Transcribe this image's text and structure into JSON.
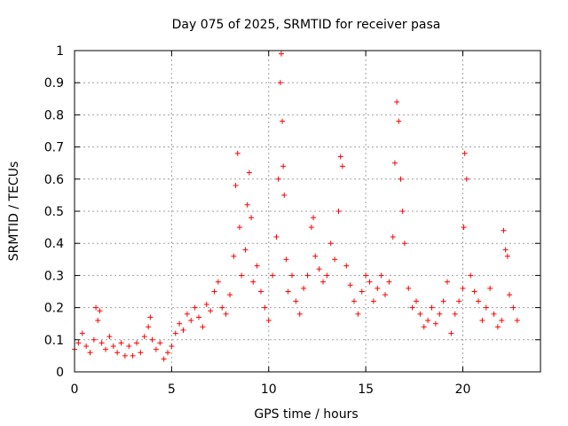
{
  "chart_data": {
    "type": "scatter",
    "title": "Day 075 of 2025, SRMTID for receiver pasa",
    "xlabel": "GPS time / hours",
    "ylabel": "SRMTID / TECUs",
    "xlim": [
      0,
      24
    ],
    "ylim": [
      0,
      1
    ],
    "xticks": [
      0,
      5,
      10,
      15,
      20
    ],
    "xtick_labels": [
      "0",
      "5",
      "10",
      "15",
      "20"
    ],
    "yticks": [
      0,
      0.1,
      0.2,
      0.3,
      0.4,
      0.5,
      0.6,
      0.7,
      0.8,
      0.9,
      1
    ],
    "ytick_labels": [
      "0",
      "0.1",
      "0.2",
      "0.3",
      "0.4",
      "0.5",
      "0.6",
      "0.7",
      "0.8",
      "0.9",
      "1"
    ],
    "grid": true,
    "marker": "+",
    "color": "#ff0000",
    "series": [
      {
        "name": "SRMTID",
        "x": [
          0.0,
          0.2,
          0.4,
          0.6,
          0.8,
          1.0,
          1.1,
          1.2,
          1.3,
          1.4,
          1.6,
          1.8,
          2.0,
          2.2,
          2.4,
          2.6,
          2.8,
          3.0,
          3.2,
          3.4,
          3.6,
          3.8,
          3.9,
          4.0,
          4.2,
          4.4,
          4.6,
          4.8,
          5.0,
          5.2,
          5.4,
          5.6,
          5.8,
          6.0,
          6.2,
          6.4,
          6.6,
          6.8,
          7.0,
          7.2,
          7.4,
          7.6,
          7.8,
          8.0,
          8.2,
          8.3,
          8.4,
          8.5,
          8.6,
          8.8,
          8.9,
          9.0,
          9.1,
          9.2,
          9.4,
          9.6,
          9.8,
          10.0,
          10.2,
          10.4,
          10.5,
          10.6,
          10.65,
          10.7,
          10.75,
          10.8,
          10.9,
          11.0,
          11.2,
          11.4,
          11.6,
          11.8,
          12.0,
          12.2,
          12.3,
          12.4,
          12.6,
          12.8,
          13.0,
          13.2,
          13.4,
          13.6,
          13.7,
          13.8,
          14.0,
          14.2,
          14.4,
          14.6,
          14.8,
          15.0,
          15.2,
          15.4,
          15.6,
          15.8,
          16.0,
          16.2,
          16.4,
          16.5,
          16.6,
          16.7,
          16.8,
          16.9,
          17.0,
          17.2,
          17.4,
          17.6,
          17.8,
          18.0,
          18.2,
          18.4,
          18.6,
          18.8,
          19.0,
          19.2,
          19.4,
          19.6,
          19.8,
          20.0,
          20.05,
          20.1,
          20.2,
          20.4,
          20.6,
          20.8,
          21.0,
          21.2,
          21.4,
          21.6,
          21.8,
          22.0,
          22.1,
          22.2,
          22.3,
          22.4,
          22.6,
          22.8
        ],
        "y": [
          0.07,
          0.09,
          0.12,
          0.08,
          0.06,
          0.1,
          0.2,
          0.16,
          0.19,
          0.09,
          0.07,
          0.11,
          0.08,
          0.06,
          0.09,
          0.05,
          0.08,
          0.05,
          0.09,
          0.06,
          0.11,
          0.14,
          0.17,
          0.1,
          0.07,
          0.09,
          0.04,
          0.06,
          0.08,
          0.12,
          0.15,
          0.13,
          0.18,
          0.16,
          0.2,
          0.17,
          0.14,
          0.21,
          0.19,
          0.25,
          0.28,
          0.2,
          0.18,
          0.24,
          0.36,
          0.58,
          0.68,
          0.45,
          0.3,
          0.38,
          0.52,
          0.62,
          0.48,
          0.28,
          0.33,
          0.25,
          0.2,
          0.16,
          0.3,
          0.42,
          0.6,
          0.9,
          0.99,
          0.78,
          0.64,
          0.55,
          0.35,
          0.25,
          0.3,
          0.22,
          0.18,
          0.26,
          0.3,
          0.45,
          0.48,
          0.36,
          0.32,
          0.28,
          0.3,
          0.4,
          0.35,
          0.5,
          0.67,
          0.64,
          0.33,
          0.27,
          0.22,
          0.18,
          0.25,
          0.3,
          0.28,
          0.22,
          0.26,
          0.3,
          0.24,
          0.28,
          0.42,
          0.65,
          0.84,
          0.78,
          0.6,
          0.5,
          0.4,
          0.26,
          0.2,
          0.22,
          0.18,
          0.14,
          0.16,
          0.2,
          0.15,
          0.18,
          0.22,
          0.28,
          0.12,
          0.18,
          0.22,
          0.26,
          0.45,
          0.68,
          0.6,
          0.3,
          0.25,
          0.22,
          0.16,
          0.2,
          0.26,
          0.18,
          0.14,
          0.16,
          0.44,
          0.38,
          0.36,
          0.24,
          0.2,
          0.16
        ]
      }
    ]
  }
}
